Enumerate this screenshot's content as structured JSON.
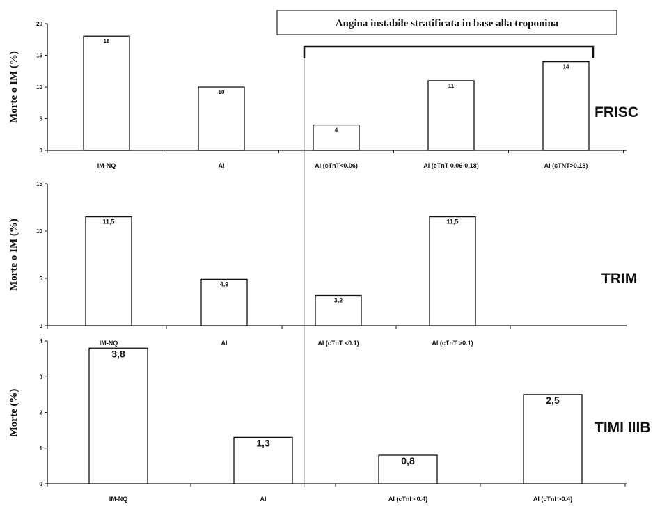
{
  "banner": {
    "text": "Angina instabile stratificata in base alla troponina"
  },
  "chart_data": [
    {
      "type": "bar",
      "title": "FRISC",
      "ylabel": "Morte o IM (%)",
      "ylim": [
        0,
        20
      ],
      "yticks": [
        0,
        5,
        10,
        15,
        20
      ],
      "categories": [
        "IM-NQ",
        "AI",
        "AI (cTnT<0.06)",
        "AI (cTnT 0.06-0.18)",
        "AI (cTNT>0.18)"
      ],
      "values": [
        18,
        10,
        4,
        11,
        14
      ],
      "value_labels": [
        "18",
        "10",
        "4",
        "11",
        "14"
      ]
    },
    {
      "type": "bar",
      "title": "TRIM",
      "ylabel": "Morte o IM (%)",
      "ylim": [
        0,
        15
      ],
      "yticks": [
        0,
        5,
        10,
        15
      ],
      "categories": [
        "IM-NQ",
        "AI",
        "AI (cTnT <0.1)",
        "AI (cTnT >0.1)"
      ],
      "values": [
        11.5,
        4.9,
        3.2,
        11.5
      ],
      "value_labels": [
        "11,5",
        "4,9",
        "3,2",
        "11,5"
      ]
    },
    {
      "type": "bar",
      "title": "TIMI IIIB",
      "ylabel": "Morte (%)",
      "ylim": [
        0,
        4
      ],
      "yticks": [
        0,
        1,
        2,
        3,
        4
      ],
      "categories": [
        "IM-NQ",
        "AI",
        "AI (cTnI <0.4)",
        "AI (cTnI >0.4)"
      ],
      "values": [
        3.8,
        1.3,
        0.8,
        2.5
      ],
      "value_labels": [
        "3,8",
        "1,3",
        "0,8",
        "2,5"
      ]
    }
  ]
}
